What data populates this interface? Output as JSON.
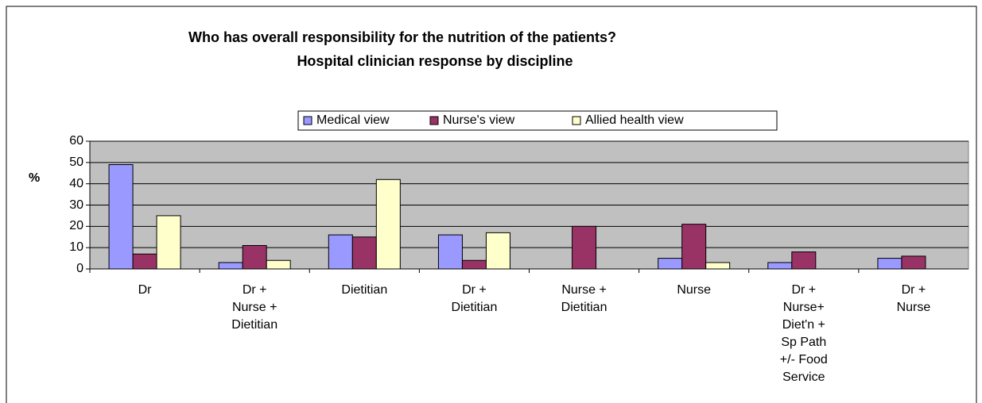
{
  "chart_data": {
    "type": "bar",
    "title": "Who has overall responsibility for the nutrition of the patients?",
    "subtitle": "Hospital clinician response by discipline",
    "y_label": "%",
    "categories": [
      "Dr",
      "Dr +\nNurse +\nDietitian",
      "Dietitian",
      "Dr +\nDietitian",
      "Nurse +\nDietitian",
      "Nurse",
      "Dr +\nNurse+\nDiet'n +\nSp Path\n+/- Food\nService",
      "Dr +\nNurse"
    ],
    "series": [
      {
        "name": "Medical view",
        "color": "#9999ff",
        "values": [
          49,
          3,
          16,
          16,
          0,
          5,
          3,
          5
        ]
      },
      {
        "name": "Nurse's view",
        "color": "#993366",
        "values": [
          7,
          11,
          15,
          4,
          20,
          21,
          8,
          6
        ]
      },
      {
        "name": "Allied health view",
        "color": "#ffffcc",
        "values": [
          25,
          4,
          42,
          17,
          0,
          3,
          0,
          0
        ]
      }
    ],
    "ylim": [
      0,
      60
    ],
    "yticks": [
      0,
      10,
      20,
      30,
      40,
      50,
      60
    ],
    "grid": true,
    "legend": "top"
  }
}
